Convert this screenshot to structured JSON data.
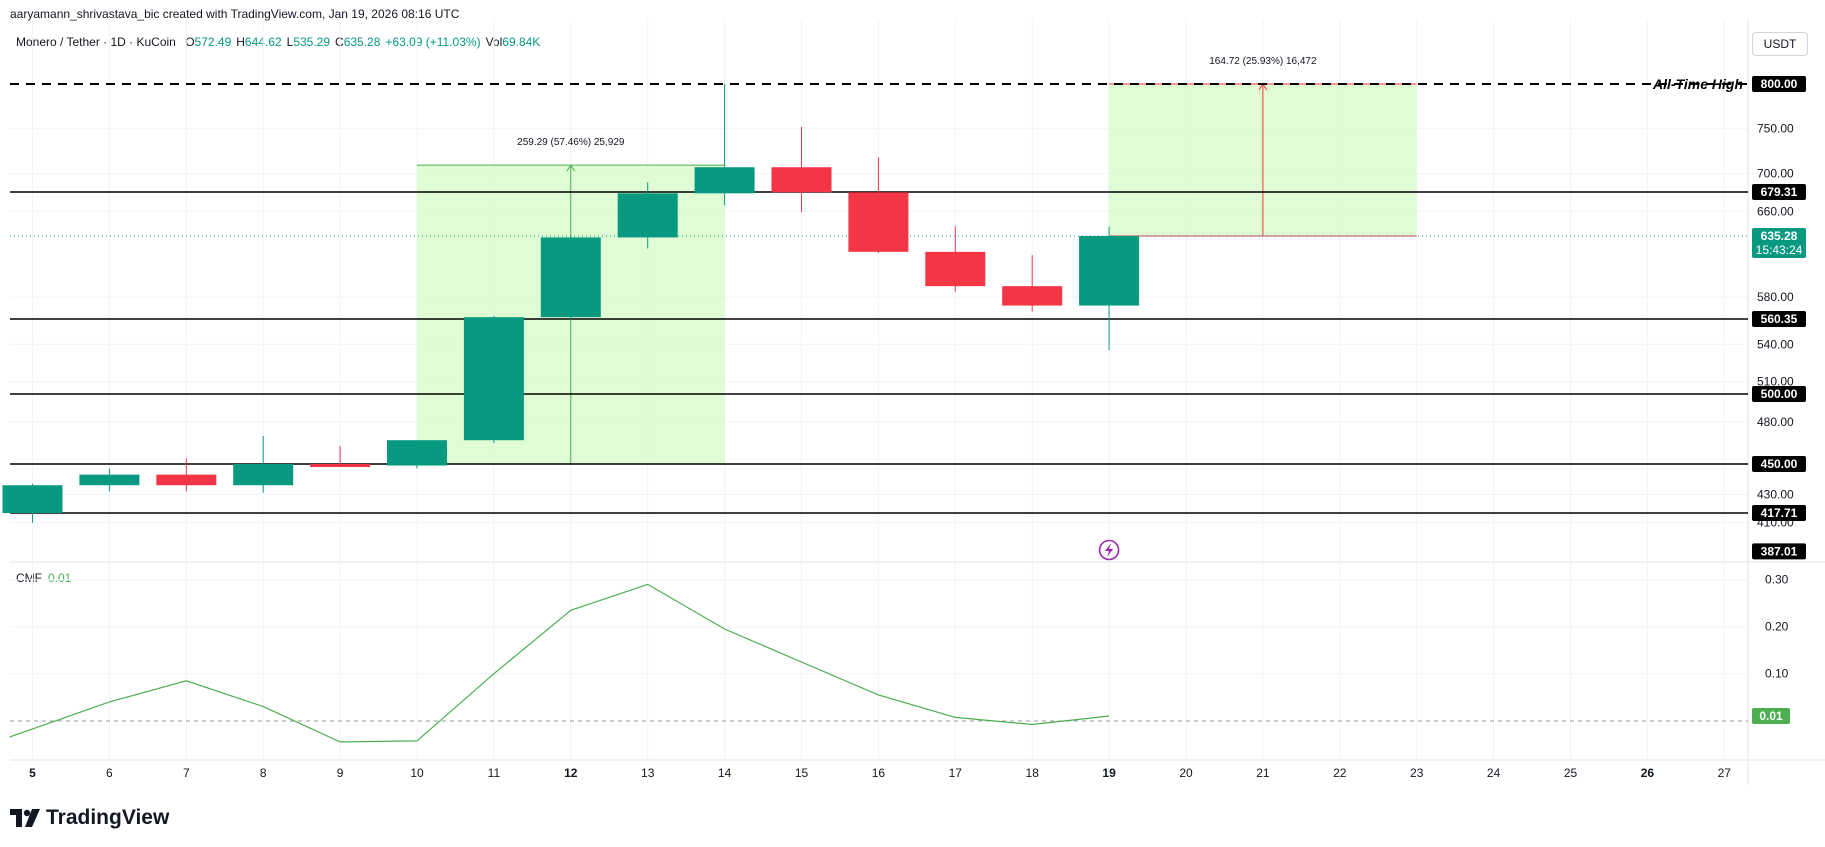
{
  "header": {
    "attribution": "aaryamann_shrivastava_bic created with TradingView.com, Jan 19, 2026 08:16 UTC",
    "symbol": "Monero / Tether · 1D · KuCoin",
    "ohlc": [
      {
        "k": "O",
        "v": "572.49"
      },
      {
        "k": "H",
        "v": "644.62"
      },
      {
        "k": "L",
        "v": "535.29"
      },
      {
        "k": "C",
        "v": "635.28"
      },
      {
        "k": "",
        "v": "+63.09 (+11.03%)"
      },
      {
        "k": "Vol",
        "v": "69.84K"
      }
    ],
    "currency_button": "USDT"
  },
  "indicator": {
    "name": "CMF",
    "value": "0.01"
  },
  "brand": {
    "name": "TradingView"
  },
  "colors": {
    "up": "#089981",
    "down": "#f23645",
    "zone": "#d9fbcd",
    "cmf": "#4caf50",
    "measure_up": "#4caf50",
    "measure_down": "#f23645"
  },
  "chart_data": {
    "type": "candlestick",
    "x_ticks": [
      "5",
      "6",
      "7",
      "8",
      "9",
      "10",
      "11",
      "12",
      "13",
      "14",
      "15",
      "16",
      "17",
      "18",
      "19",
      "20",
      "21",
      "22",
      "23",
      "24",
      "25",
      "26",
      "27"
    ],
    "x_ticks_bold": [
      "5",
      "12",
      "19",
      "26"
    ],
    "y_ticks": [
      "750.00",
      "700.00",
      "660.00",
      "580.00",
      "540.00",
      "510.00",
      "480.00",
      "430.00",
      "410.00"
    ],
    "candles": [
      {
        "day": 5,
        "o": 417.71,
        "h": 437,
        "l": 410,
        "c": 436
      },
      {
        "day": 6,
        "o": 436,
        "h": 447,
        "l": 432,
        "c": 443
      },
      {
        "day": 7,
        "o": 443,
        "h": 454,
        "l": 432,
        "c": 436
      },
      {
        "day": 8,
        "o": 436,
        "h": 470,
        "l": 431,
        "c": 450
      },
      {
        "day": 9,
        "o": 450,
        "h": 463,
        "l": 448,
        "c": 448
      },
      {
        "day": 10,
        "o": 449,
        "h": 467,
        "l": 447,
        "c": 467
      },
      {
        "day": 11,
        "o": 467,
        "h": 563,
        "l": 465,
        "c": 562
      },
      {
        "day": 12,
        "o": 562,
        "h": 636,
        "l": 560,
        "c": 634
      },
      {
        "day": 13,
        "o": 634,
        "h": 690,
        "l": 624,
        "c": 678
      },
      {
        "day": 14,
        "o": 678,
        "h": 800,
        "l": 666,
        "c": 707
      },
      {
        "day": 15,
        "o": 707,
        "h": 752,
        "l": 659,
        "c": 679
      },
      {
        "day": 16,
        "o": 679,
        "h": 718,
        "l": 620,
        "c": 621
      },
      {
        "day": 17,
        "o": 621,
        "h": 645,
        "l": 585,
        "c": 590
      },
      {
        "day": 18,
        "o": 590,
        "h": 618,
        "l": 567,
        "c": 572.49
      },
      {
        "day": 19,
        "o": 572.49,
        "h": 644.62,
        "l": 535.29,
        "c": 635.28
      }
    ],
    "horizontal_levels": [
      {
        "label": "800.00",
        "value": 800,
        "style": "dashed",
        "note": "All-Time High"
      },
      {
        "label": "679.31",
        "value": 679.31,
        "style": "solid"
      },
      {
        "label": "560.35",
        "value": 560.35,
        "style": "solid"
      },
      {
        "label": "500.00",
        "value": 500,
        "style": "solid"
      },
      {
        "label": "450.00",
        "value": 450,
        "style": "solid"
      },
      {
        "label": "417.71",
        "value": 417.71,
        "style": "solid"
      }
    ],
    "last_price": {
      "label": "635.28",
      "countdown": "15:43:24",
      "value": 635.28
    },
    "bottom_label": {
      "label": "387.01",
      "value": 387.01
    },
    "measures": [
      {
        "text": "259.29 (57.46%) 25,929",
        "from_day": 10,
        "to_day": 14,
        "from_price": 450,
        "to_price": 709.29,
        "arrow_day": 12
      },
      {
        "text": "164.72 (25.93%) 16,472",
        "from_day": 19,
        "to_day": 23,
        "from_price": 635.28,
        "to_price": 800,
        "arrow_day": 21
      }
    ],
    "cmf": {
      "days": [
        4.7,
        6,
        7,
        8,
        9,
        10,
        11,
        12,
        13,
        14,
        15,
        16,
        17,
        18,
        19
      ],
      "values": [
        -0.035,
        0.04,
        0.085,
        0.03,
        -0.045,
        -0.043,
        0.1,
        0.235,
        0.29,
        0.195,
        0.125,
        0.055,
        0.007,
        -0.008,
        0.01
      ],
      "y_ticks": [
        "0.30",
        "0.20",
        "0.10"
      ],
      "current_label": "0.01",
      "ylim": [
        -0.06,
        0.32
      ]
    }
  }
}
